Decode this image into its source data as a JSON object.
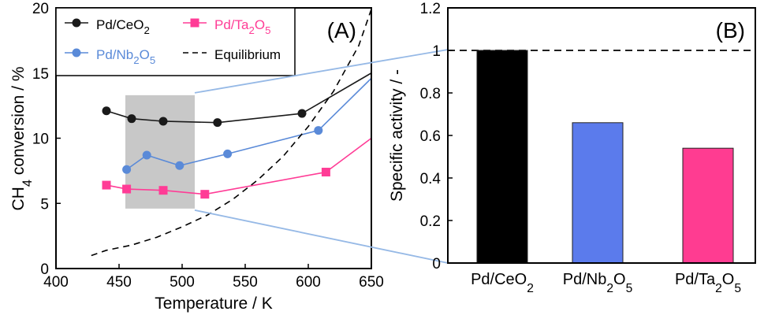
{
  "chart_data": [
    {
      "type": "line",
      "panel_label": "(A)",
      "xlabel": "Temperature / K",
      "ylabel_parts": [
        "CH",
        "4",
        " conversion / %"
      ],
      "xlim": [
        400,
        650
      ],
      "ylim": [
        0,
        20
      ],
      "xticks": [
        400,
        450,
        500,
        550,
        600,
        650
      ],
      "yticks": [
        0,
        5,
        10,
        15,
        20
      ],
      "highlight_region": {
        "x": [
          455,
          510
        ],
        "y": [
          4.6,
          13.3
        ],
        "color": "#c8c8c8"
      },
      "series": [
        {
          "name_parts": [
            "Pd/CeO",
            "2"
          ],
          "color": "#1a1a1a",
          "text_color": "#000000",
          "marker": "circle",
          "x": [
            440,
            460,
            485,
            528,
            595
          ],
          "y": [
            12.1,
            11.5,
            11.3,
            11.2,
            11.9
          ],
          "trend_x": [
            595,
            650
          ],
          "trend_y": [
            11.9,
            15.0
          ]
        },
        {
          "name_parts": [
            "Pd/Ta",
            "2",
            "O",
            "5"
          ],
          "color": "#ff3c96",
          "text_color": "#ff3c96",
          "marker": "square",
          "x": [
            440,
            456,
            485,
            518,
            614
          ],
          "y": [
            6.4,
            6.1,
            6.0,
            5.7,
            7.4
          ],
          "trend_x": [
            614,
            650
          ],
          "trend_y": [
            7.4,
            10.0
          ]
        },
        {
          "name_parts": [
            "Pd/Nb",
            "2",
            "O",
            "5"
          ],
          "color": "#5a8ad8",
          "text_color": "#5a8ad8",
          "marker": "circle",
          "x": [
            456,
            472,
            498,
            536,
            608
          ],
          "y": [
            7.6,
            8.7,
            7.9,
            8.8,
            10.6
          ],
          "trend_x": [
            608,
            650
          ],
          "trend_y": [
            10.6,
            14.6
          ]
        },
        {
          "name_parts": [
            "Equilibrium"
          ],
          "color": "#000000",
          "text_color": "#000000",
          "dashed": true,
          "x": [
            428,
            440,
            460,
            480,
            500,
            520,
            540,
            560,
            580,
            600,
            620,
            640,
            650
          ],
          "y": [
            1.0,
            1.4,
            1.8,
            2.4,
            3.2,
            4.1,
            5.3,
            6.8,
            8.6,
            10.9,
            13.6,
            17.1,
            19.9
          ]
        }
      ]
    },
    {
      "type": "bar",
      "panel_label": "(B)",
      "ylabel": "Specific activity / -",
      "ylim": [
        0,
        1.2
      ],
      "yticks": [
        "0",
        "0.2",
        "0.4",
        "0.6",
        "0.8",
        "1",
        "1.2"
      ],
      "reference_line": 1.0,
      "categories": [
        {
          "parts": [
            "Pd/CeO",
            "2"
          ]
        },
        {
          "parts": [
            "Pd/Nb",
            "2",
            "O",
            "5"
          ]
        },
        {
          "parts": [
            "Pd/Ta",
            "2",
            "O",
            "5"
          ]
        }
      ],
      "values": [
        1.0,
        0.66,
        0.54
      ],
      "colors": [
        "#000000",
        "#5b7bec",
        "#ff3c91"
      ]
    }
  ],
  "connector_color": "#96b9e6"
}
